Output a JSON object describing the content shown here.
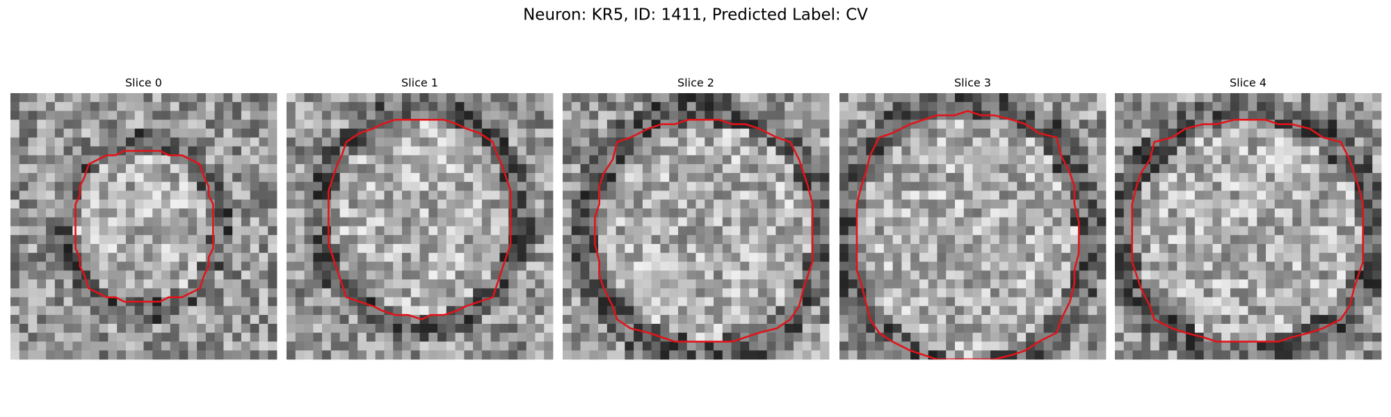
{
  "title": "Neuron: KR5, ID: 1411, Predicted Label: CV",
  "panels": [
    {
      "title": "Slice 0"
    },
    {
      "title": "Slice 1"
    },
    {
      "title": "Slice 2"
    },
    {
      "title": "Slice 3"
    },
    {
      "title": "Slice 4"
    }
  ]
}
